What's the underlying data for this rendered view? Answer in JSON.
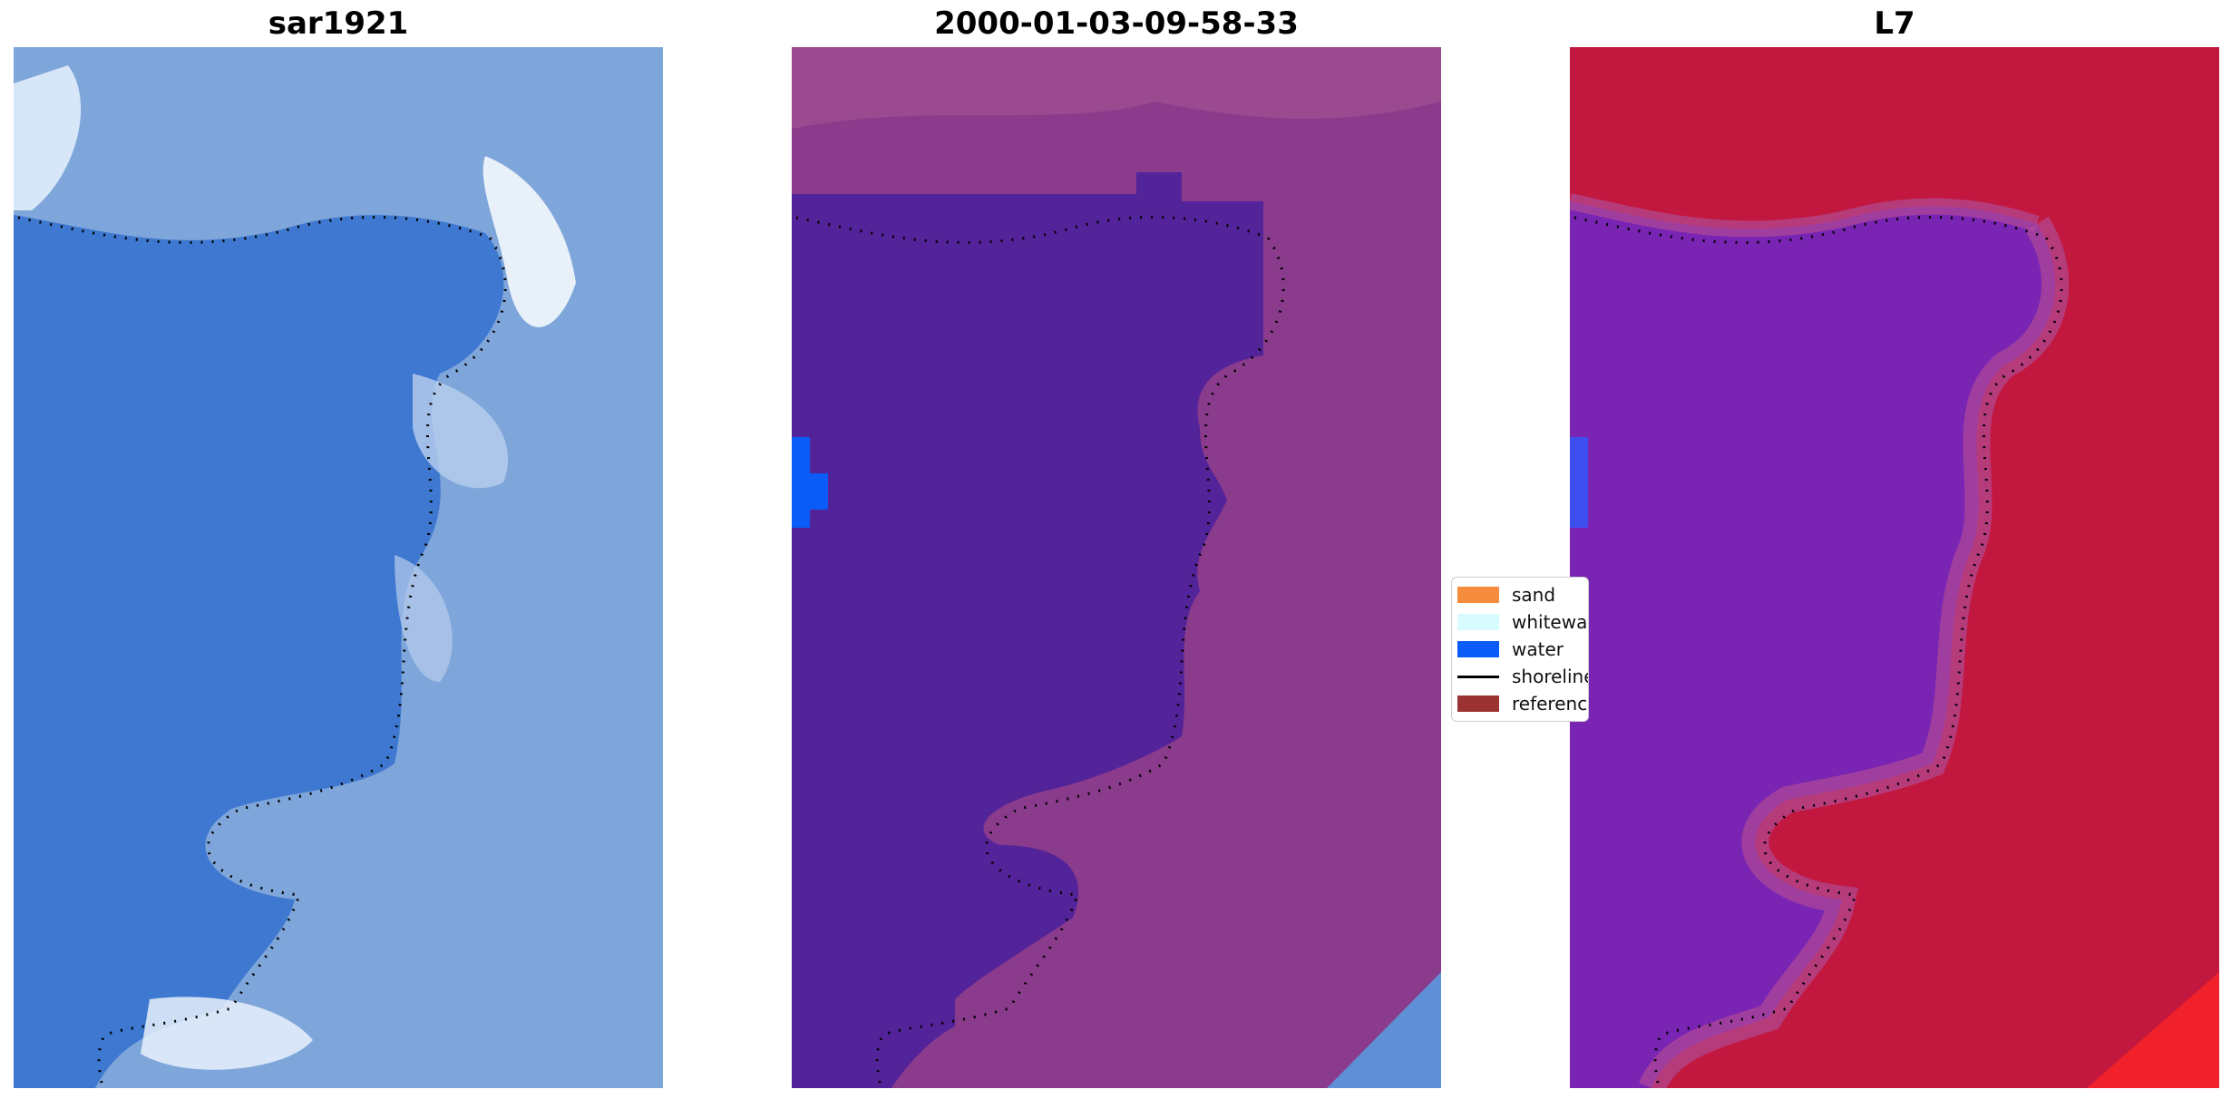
{
  "panels": [
    {
      "title": "sar1921",
      "kind": "rgb"
    },
    {
      "title": "2000-01-03-09-58-33",
      "kind": "classified"
    },
    {
      "title": "L7",
      "kind": "index"
    }
  ],
  "legend": {
    "items": [
      {
        "label": "sand",
        "color": "#f58b3c",
        "type": "patch"
      },
      {
        "label": "whitewater",
        "color": "#d8fbff",
        "type": "patch"
      },
      {
        "label": "water",
        "color": "#0b5cf7",
        "type": "patch"
      },
      {
        "label": "shoreline",
        "color": "#000000",
        "type": "line"
      },
      {
        "label": "reference shoreline",
        "color": "#9b3333",
        "type": "patch"
      }
    ]
  },
  "colors": {
    "rgb_water": "#3f79cf",
    "rgb_land": "#84a9dc",
    "class_water": "#53239a",
    "class_land": "#8a3b8c",
    "index_water": "#7a24b4",
    "index_land": "#c2183f"
  }
}
